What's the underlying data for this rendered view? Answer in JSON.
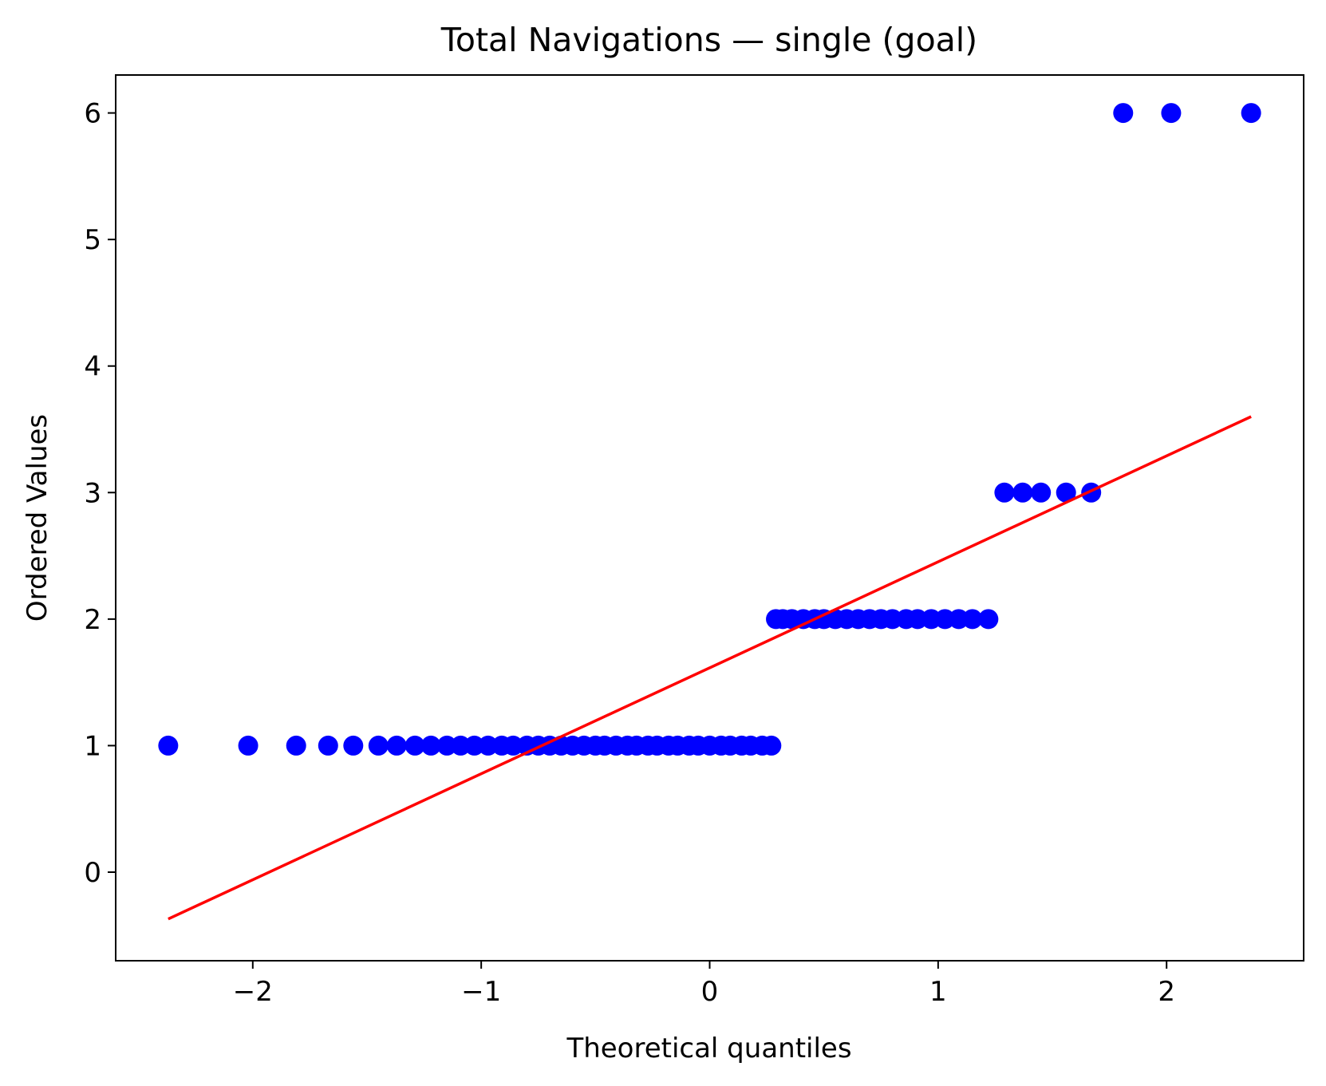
{
  "chart_data": {
    "type": "scatter",
    "title": "Total Navigations — single (goal)",
    "xlabel": "Theoretical quantiles",
    "ylabel": "Ordered Values",
    "xlim": [
      -2.6,
      2.6
    ],
    "ylim": [
      -0.7,
      6.3
    ],
    "xticks": [
      -2,
      -1,
      0,
      1,
      2
    ],
    "xtick_labels": [
      "−2",
      "−1",
      "0",
      "1",
      "2"
    ],
    "yticks": [
      0,
      1,
      2,
      3,
      4,
      5,
      6
    ],
    "ytick_labels": [
      "0",
      "1",
      "2",
      "3",
      "4",
      "5",
      "6"
    ],
    "grid": false,
    "series": [
      {
        "kind": "points",
        "color": "#0000ff",
        "points": [
          {
            "x": -2.37,
            "y": 1
          },
          {
            "x": -2.02,
            "y": 1
          },
          {
            "x": -1.81,
            "y": 1
          },
          {
            "x": -1.67,
            "y": 1
          },
          {
            "x": -1.56,
            "y": 1
          },
          {
            "x": -1.45,
            "y": 1
          },
          {
            "x": -1.37,
            "y": 1
          },
          {
            "x": -1.29,
            "y": 1
          },
          {
            "x": -1.22,
            "y": 1
          },
          {
            "x": -1.15,
            "y": 1
          },
          {
            "x": -1.09,
            "y": 1
          },
          {
            "x": -1.03,
            "y": 1
          },
          {
            "x": -0.97,
            "y": 1
          },
          {
            "x": -0.91,
            "y": 1
          },
          {
            "x": -0.86,
            "y": 1
          },
          {
            "x": -0.8,
            "y": 1
          },
          {
            "x": -0.75,
            "y": 1
          },
          {
            "x": -0.7,
            "y": 1
          },
          {
            "x": -0.65,
            "y": 1
          },
          {
            "x": -0.6,
            "y": 1
          },
          {
            "x": -0.55,
            "y": 1
          },
          {
            "x": -0.5,
            "y": 1
          },
          {
            "x": -0.46,
            "y": 1
          },
          {
            "x": -0.41,
            "y": 1
          },
          {
            "x": -0.36,
            "y": 1
          },
          {
            "x": -0.32,
            "y": 1
          },
          {
            "x": -0.27,
            "y": 1
          },
          {
            "x": -0.23,
            "y": 1
          },
          {
            "x": -0.18,
            "y": 1
          },
          {
            "x": -0.14,
            "y": 1
          },
          {
            "x": -0.09,
            "y": 1
          },
          {
            "x": -0.05,
            "y": 1
          },
          {
            "x": 0.0,
            "y": 1
          },
          {
            "x": 0.05,
            "y": 1
          },
          {
            "x": 0.09,
            "y": 1
          },
          {
            "x": 0.14,
            "y": 1
          },
          {
            "x": 0.18,
            "y": 1
          },
          {
            "x": 0.23,
            "y": 1
          },
          {
            "x": 0.27,
            "y": 1
          },
          {
            "x": 0.29,
            "y": 2
          },
          {
            "x": 0.32,
            "y": 2
          },
          {
            "x": 0.36,
            "y": 2
          },
          {
            "x": 0.41,
            "y": 2
          },
          {
            "x": 0.46,
            "y": 2
          },
          {
            "x": 0.5,
            "y": 2
          },
          {
            "x": 0.55,
            "y": 2
          },
          {
            "x": 0.6,
            "y": 2
          },
          {
            "x": 0.65,
            "y": 2
          },
          {
            "x": 0.7,
            "y": 2
          },
          {
            "x": 0.75,
            "y": 2
          },
          {
            "x": 0.8,
            "y": 2
          },
          {
            "x": 0.86,
            "y": 2
          },
          {
            "x": 0.91,
            "y": 2
          },
          {
            "x": 0.97,
            "y": 2
          },
          {
            "x": 1.03,
            "y": 2
          },
          {
            "x": 1.09,
            "y": 2
          },
          {
            "x": 1.15,
            "y": 2
          },
          {
            "x": 1.22,
            "y": 2
          },
          {
            "x": 1.29,
            "y": 3
          },
          {
            "x": 1.37,
            "y": 3
          },
          {
            "x": 1.45,
            "y": 3
          },
          {
            "x": 1.56,
            "y": 3
          },
          {
            "x": 1.67,
            "y": 3
          },
          {
            "x": 1.81,
            "y": 6
          },
          {
            "x": 2.02,
            "y": 6
          },
          {
            "x": 2.37,
            "y": 6
          }
        ]
      },
      {
        "kind": "fit-line",
        "color": "#ff0000",
        "points": [
          {
            "x": -2.37,
            "y": -0.37
          },
          {
            "x": 2.37,
            "y": 3.6
          }
        ]
      }
    ]
  }
}
